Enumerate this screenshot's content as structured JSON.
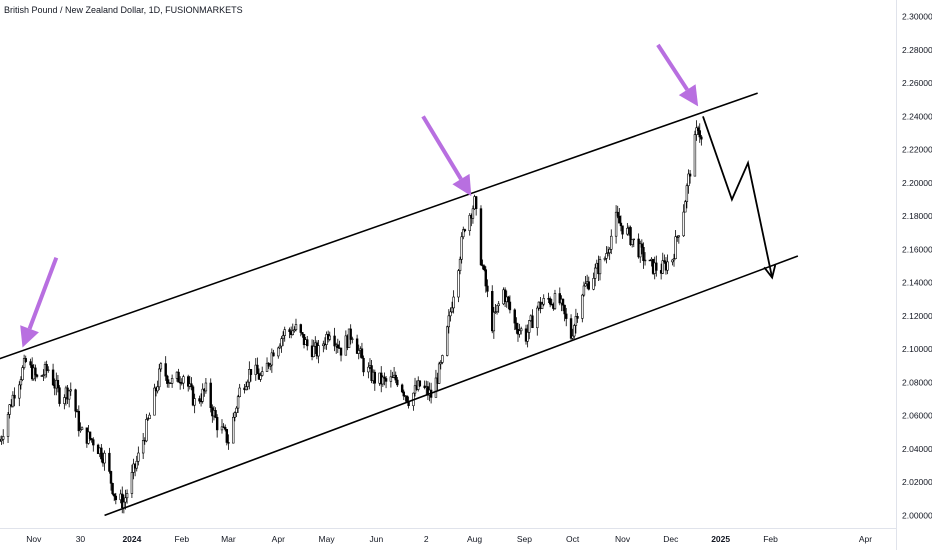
{
  "chart_data": {
    "type": "candlestick",
    "title": "British Pound / New Zealand Dollar, 1D, FUSIONMARKETS",
    "ylim": [
      1.99,
      2.31
    ],
    "y_ticks": [
      2.0,
      2.02,
      2.04,
      2.06,
      2.08,
      2.1,
      2.12,
      2.14,
      2.16,
      2.18,
      2.2,
      2.22,
      2.24,
      2.26,
      2.28,
      2.3
    ],
    "y_tick_decimals": 5,
    "x_range": [
      "2023-10-11",
      "2025-04-20"
    ],
    "x_ticks": [
      {
        "label": "Nov",
        "date": "2023-11-01",
        "bold": false
      },
      {
        "label": "30",
        "date": "2023-11-30",
        "bold": false
      },
      {
        "label": "2024",
        "date": "2024-01-01",
        "bold": true
      },
      {
        "label": "Feb",
        "date": "2024-02-01",
        "bold": false
      },
      {
        "label": "Mar",
        "date": "2024-03-01",
        "bold": false
      },
      {
        "label": "Apr",
        "date": "2024-04-01",
        "bold": false
      },
      {
        "label": "May",
        "date": "2024-05-01",
        "bold": false
      },
      {
        "label": "Jun",
        "date": "2024-06-01",
        "bold": false
      },
      {
        "label": "2",
        "date": "2024-07-02",
        "bold": false
      },
      {
        "label": "Aug",
        "date": "2024-08-01",
        "bold": false
      },
      {
        "label": "Sep",
        "date": "2024-09-01",
        "bold": false
      },
      {
        "label": "Oct",
        "date": "2024-10-01",
        "bold": false
      },
      {
        "label": "Nov",
        "date": "2024-11-01",
        "bold": false
      },
      {
        "label": "Dec",
        "date": "2024-12-01",
        "bold": false
      },
      {
        "label": "2025",
        "date": "2025-01-01",
        "bold": true
      },
      {
        "label": "Feb",
        "date": "2025-02-01",
        "bold": false
      },
      {
        "label": "Apr",
        "date": "2025-04-01",
        "bold": false
      }
    ],
    "price_path": [
      [
        "2023-10-11",
        2.045
      ],
      [
        "2023-10-20",
        2.075
      ],
      [
        "2023-10-27",
        2.092
      ],
      [
        "2023-11-03",
        2.082
      ],
      [
        "2023-11-10",
        2.088
      ],
      [
        "2023-11-17",
        2.072
      ],
      [
        "2023-11-24",
        2.076
      ],
      [
        "2023-11-30",
        2.05
      ],
      [
        "2023-12-08",
        2.045
      ],
      [
        "2023-12-15",
        2.035
      ],
      [
        "2023-12-22",
        2.01
      ],
      [
        "2023-12-27",
        2.008
      ],
      [
        "2024-01-05",
        2.035
      ],
      [
        "2024-01-12",
        2.06
      ],
      [
        "2024-01-19",
        2.088
      ],
      [
        "2024-01-26",
        2.08
      ],
      [
        "2024-02-02",
        2.085
      ],
      [
        "2024-02-09",
        2.068
      ],
      [
        "2024-02-16",
        2.075
      ],
      [
        "2024-02-23",
        2.055
      ],
      [
        "2024-03-01",
        2.045
      ],
      [
        "2024-03-08",
        2.075
      ],
      [
        "2024-03-15",
        2.088
      ],
      [
        "2024-03-22",
        2.082
      ],
      [
        "2024-03-29",
        2.1
      ],
      [
        "2024-04-05",
        2.11
      ],
      [
        "2024-04-12",
        2.112
      ],
      [
        "2024-04-19",
        2.102
      ],
      [
        "2024-04-26",
        2.098
      ],
      [
        "2024-05-03",
        2.112
      ],
      [
        "2024-05-10",
        2.1
      ],
      [
        "2024-05-17",
        2.11
      ],
      [
        "2024-05-24",
        2.09
      ],
      [
        "2024-05-31",
        2.082
      ],
      [
        "2024-06-07",
        2.08
      ],
      [
        "2024-06-14",
        2.082
      ],
      [
        "2024-06-21",
        2.07
      ],
      [
        "2024-06-28",
        2.078
      ],
      [
        "2024-07-05",
        2.072
      ],
      [
        "2024-07-12",
        2.092
      ],
      [
        "2024-07-19",
        2.135
      ],
      [
        "2024-07-26",
        2.175
      ],
      [
        "2024-08-01",
        2.188
      ],
      [
        "2024-08-05",
        2.155
      ],
      [
        "2024-08-12",
        2.115
      ],
      [
        "2024-08-19",
        2.135
      ],
      [
        "2024-08-26",
        2.115
      ],
      [
        "2024-09-02",
        2.108
      ],
      [
        "2024-09-09",
        2.125
      ],
      [
        "2024-09-16",
        2.13
      ],
      [
        "2024-09-23",
        2.128
      ],
      [
        "2024-09-30",
        2.108
      ],
      [
        "2024-10-07",
        2.135
      ],
      [
        "2024-10-14",
        2.145
      ],
      [
        "2024-10-21",
        2.155
      ],
      [
        "2024-10-28",
        2.178
      ],
      [
        "2024-11-04",
        2.17
      ],
      [
        "2024-11-11",
        2.16
      ],
      [
        "2024-11-18",
        2.15
      ],
      [
        "2024-11-25",
        2.148
      ],
      [
        "2024-12-02",
        2.155
      ],
      [
        "2024-12-09",
        2.185
      ],
      [
        "2024-12-13",
        2.208
      ],
      [
        "2024-12-18",
        2.235
      ],
      [
        "2024-12-20",
        2.225
      ]
    ],
    "channel": {
      "upper": [
        [
          "2023-10-10",
          2.094
        ],
        [
          "2025-01-24",
          2.254
        ]
      ],
      "lower": [
        [
          "2023-12-15",
          2.0
        ],
        [
          "2025-02-18",
          2.156
        ]
      ]
    },
    "projection": [
      [
        "2024-12-21",
        2.24
      ],
      [
        "2025-01-08",
        2.19
      ],
      [
        "2025-01-18",
        2.212
      ],
      [
        "2025-02-02",
        2.143
      ]
    ],
    "markers": [
      {
        "tip": [
          "2023-10-25",
          2.101
        ],
        "tail": [
          "2023-11-15",
          2.155
        ]
      },
      {
        "tip": [
          "2024-07-30",
          2.192
        ],
        "tail": [
          "2024-06-30",
          2.24
        ]
      },
      {
        "tip": [
          "2024-12-18",
          2.246
        ],
        "tail": [
          "2024-11-23",
          2.283
        ]
      }
    ],
    "colors": {
      "candle": "#000000",
      "channel": "#000000",
      "projection": "#000000",
      "marker": "#b86fe0",
      "axis_text": "#131722",
      "axis_border": "#e0e3eb"
    }
  }
}
